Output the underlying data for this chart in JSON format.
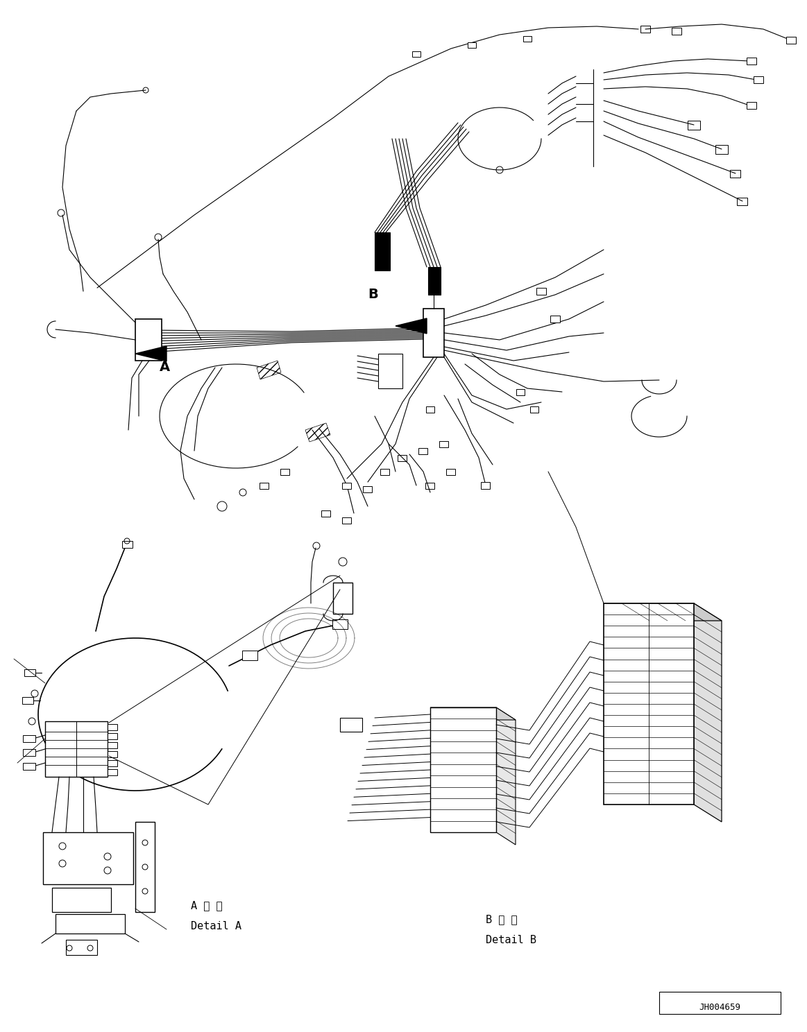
{
  "background_color": "#ffffff",
  "line_color": "#000000",
  "figure_width": 11.63,
  "figure_height": 14.88,
  "dpi": 100,
  "label_A": "A",
  "label_B": "B",
  "detail_A_line1": "A 詳 細",
  "detail_A_line2": "Detail A",
  "detail_B_line1": "B 詳 細",
  "detail_B_line2": "Detail B",
  "part_number": "JH004659"
}
